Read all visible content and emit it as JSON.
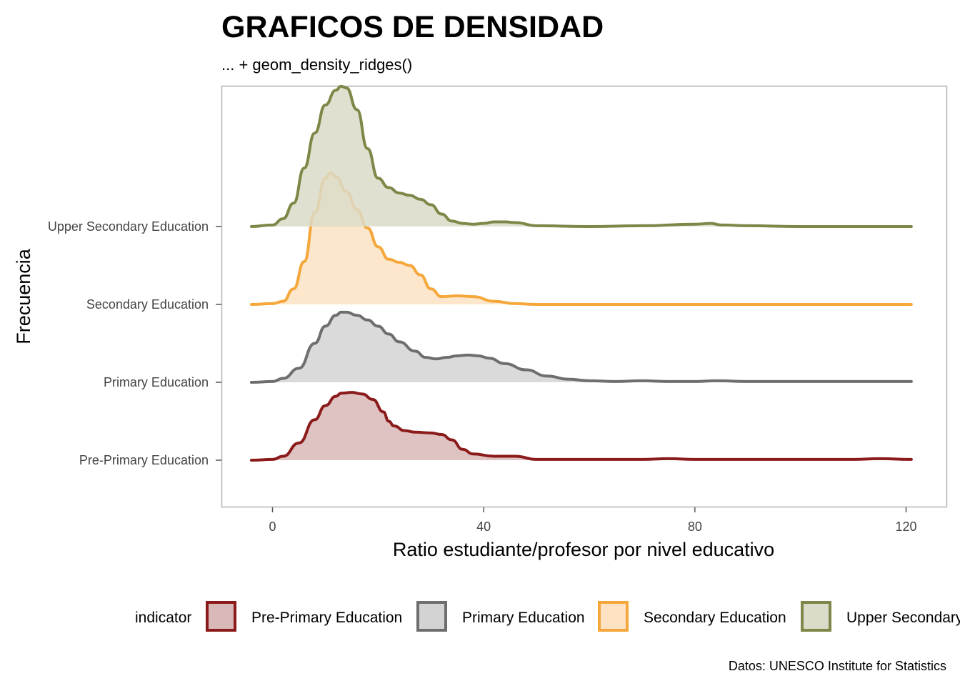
{
  "title": "GRAFICOS DE DENSIDAD",
  "subtitle": "... + geom_density_ridges()",
  "caption": "Datos: UNESCO Institute for Statistics",
  "chart_data": {
    "type": "area",
    "subtype": "density_ridges",
    "xlabel": "Ratio estudiante/profesor por nivel educativo",
    "ylabel": "Frecuencia",
    "xlim": [
      -10,
      126
    ],
    "x_ticks": [
      "0",
      "40",
      "80",
      "120"
    ],
    "x_tick_values": [
      0,
      40,
      80,
      120
    ],
    "grid": false,
    "legend": {
      "title": "indicator",
      "placement": "bottom",
      "entries": [
        "Pre-Primary Education",
        "Primary Education",
        "Secondary Education",
        "Upper Secondary"
      ]
    },
    "series": [
      {
        "name": "Pre-Primary Education",
        "category_label": "Pre-Primary Education",
        "line_color": "#8B1A1A",
        "fill_color": "#D9B8B8",
        "x": [
          -4,
          0,
          2,
          5,
          8,
          10,
          12,
          13,
          15,
          17,
          19,
          21,
          22,
          23,
          25,
          27,
          30,
          32,
          34,
          36,
          38,
          42,
          46,
          50,
          60,
          70,
          75,
          80,
          90,
          100,
          110,
          115,
          121
        ],
        "density": [
          0,
          0.01,
          0.05,
          0.22,
          0.52,
          0.7,
          0.82,
          0.86,
          0.87,
          0.85,
          0.78,
          0.62,
          0.5,
          0.44,
          0.38,
          0.36,
          0.35,
          0.33,
          0.26,
          0.14,
          0.08,
          0.05,
          0.05,
          0.01,
          0.01,
          0.01,
          0.02,
          0.01,
          0.01,
          0.01,
          0.01,
          0.02,
          0.01
        ]
      },
      {
        "name": "Primary Education",
        "category_label": "Primary Education",
        "line_color": "#6E6E6E",
        "fill_color": "#D3D3D3",
        "x": [
          -4,
          0,
          2,
          5,
          8,
          10,
          12,
          13,
          14,
          16,
          18,
          20,
          22,
          24,
          27,
          29,
          31,
          33,
          35,
          37,
          39,
          41,
          44,
          48,
          52,
          56,
          60,
          65,
          70,
          75,
          80,
          84,
          90,
          100,
          110,
          121
        ],
        "density": [
          0,
          0.01,
          0.05,
          0.18,
          0.5,
          0.72,
          0.86,
          0.9,
          0.9,
          0.86,
          0.8,
          0.72,
          0.62,
          0.52,
          0.4,
          0.32,
          0.3,
          0.32,
          0.34,
          0.35,
          0.34,
          0.31,
          0.24,
          0.16,
          0.08,
          0.04,
          0.02,
          0.01,
          0.02,
          0.01,
          0.01,
          0.02,
          0.01,
          0.01,
          0.01,
          0.01
        ]
      },
      {
        "name": "Secondary Education",
        "category_label": "Secondary Education",
        "line_color": "#F5A73B",
        "fill_color": "#FDE3C3",
        "x": [
          -4,
          0,
          2,
          4,
          6,
          8,
          10,
          11,
          12,
          14,
          16,
          18,
          20,
          22,
          24,
          26,
          28,
          30,
          32,
          35,
          38,
          42,
          46,
          50,
          60,
          80,
          100,
          121
        ],
        "density": [
          0,
          0.01,
          0.04,
          0.2,
          0.55,
          1.18,
          1.62,
          1.69,
          1.64,
          1.45,
          1.22,
          0.98,
          0.74,
          0.58,
          0.54,
          0.5,
          0.38,
          0.2,
          0.1,
          0.11,
          0.1,
          0.04,
          0.01,
          0.0,
          0.0,
          0.0,
          0.0,
          0.0
        ]
      },
      {
        "name": "Upper Secondary",
        "category_label": "Upper Secondary Education",
        "line_color": "#7E8748",
        "fill_color": "#DADBC8",
        "x": [
          -4,
          0,
          2,
          4,
          6,
          8,
          10,
          12,
          13,
          14,
          16,
          18,
          20,
          22,
          24,
          26,
          28,
          30,
          32,
          34,
          36,
          38,
          40,
          42,
          44,
          46,
          50,
          60,
          70,
          80,
          83,
          85,
          90,
          100,
          110,
          121
        ],
        "density": [
          0,
          0.02,
          0.1,
          0.3,
          0.75,
          1.2,
          1.56,
          1.75,
          1.8,
          1.78,
          1.5,
          1.0,
          0.62,
          0.5,
          0.43,
          0.4,
          0.35,
          0.28,
          0.16,
          0.07,
          0.04,
          0.03,
          0.04,
          0.06,
          0.06,
          0.05,
          0.01,
          0.0,
          0.01,
          0.03,
          0.04,
          0.02,
          0.01,
          0.0,
          0.0,
          0.0
        ]
      }
    ]
  }
}
